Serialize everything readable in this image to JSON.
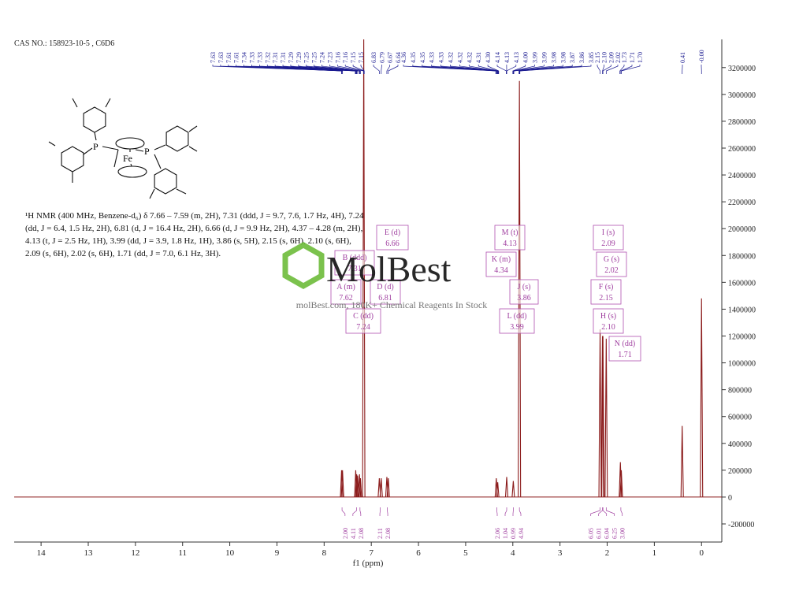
{
  "header": "CAS NO.: 158923-10-5 , C6D6",
  "description": "¹H NMR (400 MHz, Benzene-d₆) δ 7.66 – 7.59 (m, 2H), 7.31 (ddd, J = 9.7, 7.6, 1.7 Hz, 4H), 7.24 (dd, J = 6.4, 1.5 Hz, 2H), 6.81 (d, J = 16.4 Hz, 2H), 6.66 (d, J = 9.9 Hz, 2H), 4.37 – 4.28 (m, 2H), 4.13 (t, J = 2.5 Hz, 1H), 3.99 (dd, J = 3.9, 1.8 Hz, 1H), 3.86 (s, 5H), 2.15 (s, 6H), 2.10 (s, 6H), 2.09 (s, 6H), 2.02 (s, 6H), 1.71 (dd, J = 7.0, 6.1 Hz, 3H).",
  "structure": {
    "atoms": [
      "P",
      "P",
      "Fe"
    ]
  },
  "watermark": {
    "logo": "MolBest",
    "tagline": "molBest.com, 180K+ Chemical Reagents In Stock"
  },
  "chart_data": {
    "type": "nmr",
    "xlabel": "f1 (ppm)",
    "xlim": [
      14.57,
      -0.43
    ],
    "xticks": [
      14,
      13,
      12,
      11,
      10,
      9,
      8,
      7,
      6,
      5,
      4,
      3,
      2,
      1,
      0
    ],
    "ylim": [
      -335000,
      3410000
    ],
    "yticks": [
      3200000,
      3000000,
      2800000,
      2600000,
      2400000,
      2200000,
      2000000,
      1800000,
      1600000,
      1400000,
      1200000,
      1000000,
      800000,
      600000,
      400000,
      200000,
      0,
      -200000
    ],
    "color": "#8b1a1a",
    "peaks": {
      "x": [
        7.63,
        7.61,
        7.33,
        7.31,
        7.29,
        7.25,
        7.23,
        7.16,
        6.83,
        6.79,
        6.67,
        6.64,
        4.35,
        4.32,
        4.13,
        3.99,
        3.86,
        2.15,
        2.1,
        2.09,
        2.02,
        1.72,
        1.7,
        0.41,
        0
      ],
      "values": [
        200000,
        200000,
        200000,
        170000,
        160000,
        170000,
        140000,
        3410000,
        140000,
        140000,
        150000,
        140000,
        140000,
        110000,
        150000,
        120000,
        3100000,
        1250000,
        1200000,
        1200000,
        1180000,
        260000,
        200000,
        530000,
        1480000
      ]
    },
    "peak_labels": [
      7.63,
      7.63,
      7.61,
      7.61,
      7.34,
      7.33,
      7.33,
      7.32,
      7.31,
      7.31,
      7.29,
      7.29,
      7.25,
      7.25,
      7.24,
      7.23,
      7.16,
      7.16,
      7.15,
      7.15,
      6.83,
      6.79,
      6.67,
      6.64,
      4.36,
      4.35,
      4.35,
      4.33,
      4.33,
      4.32,
      4.32,
      4.32,
      4.31,
      {
        "value": 4.3,
        "label": "4.30"
      },
      4.14,
      4.13,
      4.13,
      {
        "value": 4,
        "label": "4.00"
      },
      3.99,
      3.99,
      3.98,
      3.98,
      3.87,
      3.86,
      3.85,
      2.15,
      {
        "value": 2.1,
        "label": "2.10"
      },
      2.09,
      2.02,
      1.73,
      1.71,
      {
        "value": 1.7,
        "label": "1.70"
      },
      0.41,
      {
        "value": 0,
        "label": "-0.00"
      }
    ],
    "integrals": {
      "x": [
        7.62,
        7.31,
        7.24,
        6.81,
        6.66,
        4.34,
        4.13,
        3.99,
        3.86,
        2.15,
        2.1,
        2.09,
        2.02,
        1.71
      ],
      "labels": [
        "2.00",
        "4.11",
        "2.08",
        "2.11",
        "2.08",
        "2.06",
        "1.04",
        "0.99",
        "4.94",
        "6.05",
        "6.01",
        "6.04",
        "6.25",
        "3.00"
      ]
    },
    "multiplets": [
      {
        "label": "E (d)",
        "shift": "6.66"
      },
      {
        "label": "M (t)",
        "shift": "4.13"
      },
      {
        "label": "I (s)",
        "shift": "2.09"
      },
      {
        "label": "B (ddd)",
        "shift": "7.31"
      },
      {
        "label": "K (m)",
        "shift": "4.34"
      },
      {
        "label": "G (s)",
        "shift": "2.02"
      },
      {
        "label": "A (m)",
        "shift": "7.62"
      },
      {
        "label": "D (d)",
        "shift": "6.81"
      },
      {
        "label": "J (s)",
        "shift": "3.86"
      },
      {
        "label": "F (s)",
        "shift": "2.15"
      },
      {
        "label": "C (dd)",
        "shift": "7.24"
      },
      {
        "label": "L (dd)",
        "shift": "3.99"
      },
      {
        "label": "H (s)",
        "shift": "2.10"
      },
      {
        "label": "N (dd)",
        "shift": "1.71"
      }
    ]
  }
}
